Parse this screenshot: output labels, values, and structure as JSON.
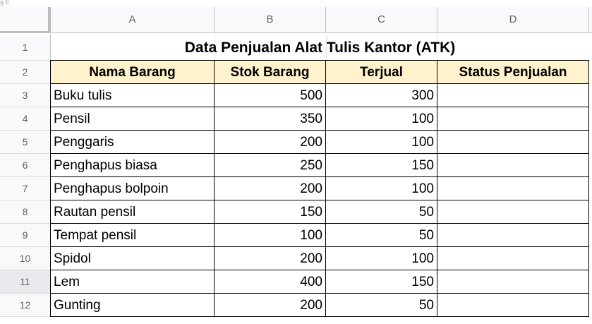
{
  "sheet": {
    "top_scrap": "g Е",
    "columns": [
      "A",
      "B",
      "C",
      "D"
    ],
    "rows": [
      "1",
      "2",
      "3",
      "4",
      "5",
      "6",
      "7",
      "8",
      "9",
      "10",
      "11",
      "12"
    ],
    "title": "Data Penjualan Alat Tulis Kantor (ATK)",
    "headers": [
      "Nama Barang",
      "Stok Barang",
      "Terjual",
      "Status Penjualan"
    ],
    "data": [
      [
        "Buku tulis",
        "500",
        "300",
        ""
      ],
      [
        "Pensil",
        "350",
        "100",
        ""
      ],
      [
        "Penggaris",
        "200",
        "100",
        ""
      ],
      [
        "Penghapus biasa",
        "250",
        "150",
        ""
      ],
      [
        "Penghapus bolpoin",
        "200",
        "100",
        ""
      ],
      [
        "Rautan pensil",
        "150",
        "50",
        ""
      ],
      [
        "Tempat pensil",
        "100",
        "50",
        ""
      ],
      [
        "Spidol",
        "200",
        "100",
        ""
      ],
      [
        "Lem",
        "400",
        "150",
        ""
      ],
      [
        "Gunting",
        "200",
        "50",
        ""
      ]
    ],
    "colors": {
      "header_fill": "#fff2cc",
      "grid": "#e2e3e3",
      "border": "#000000"
    }
  }
}
